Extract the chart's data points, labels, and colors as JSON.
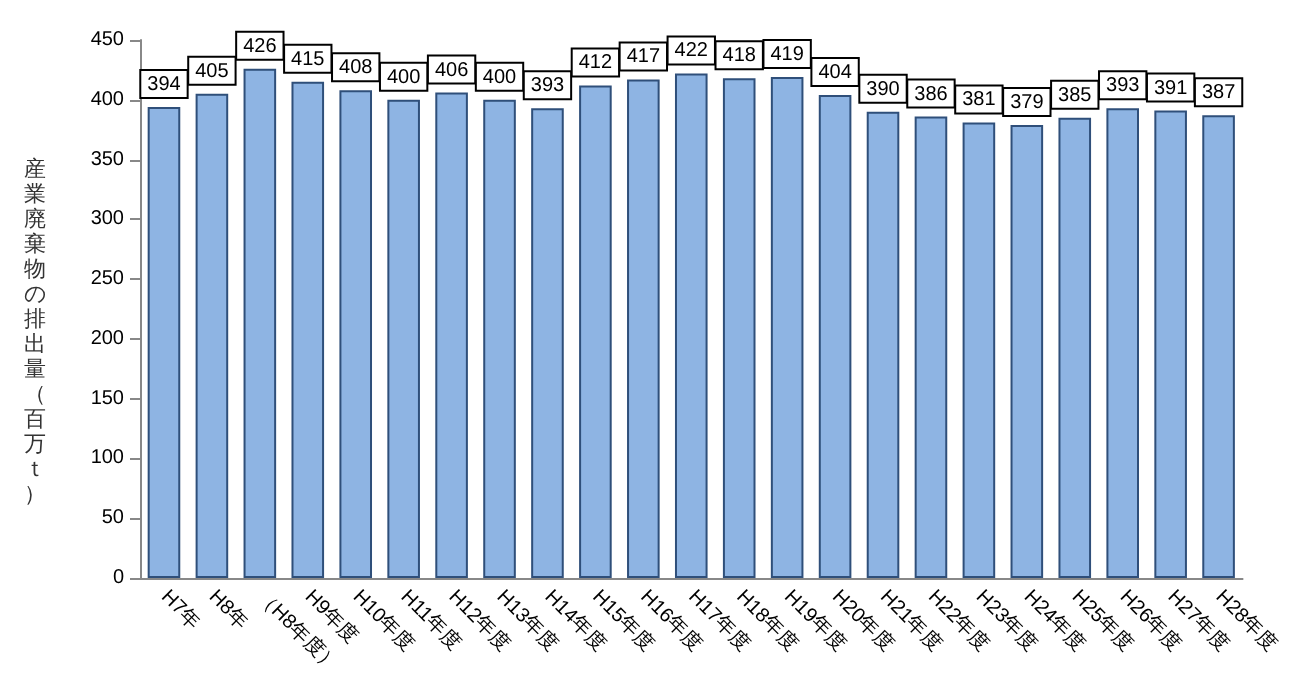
{
  "chart_data": {
    "type": "bar",
    "ylabel": "産業廃棄物の排出量（百万ｔ）",
    "categories": [
      "H7年",
      "H8年",
      "（H8年度）",
      "H9年度",
      "H10年度",
      "H11年度",
      "H12年度",
      "H13年度",
      "H14年度",
      "H15年度",
      "H16年度",
      "H17年度",
      "H18年度",
      "H19年度",
      "H20年度",
      "H21年度",
      "H22年度",
      "H23年度",
      "H24年度",
      "H25年度",
      "H26年度",
      "H27年度",
      "H28年度"
    ],
    "values": [
      394,
      405,
      426,
      415,
      408,
      400,
      406,
      400,
      393,
      412,
      417,
      422,
      418,
      419,
      404,
      390,
      386,
      381,
      379,
      385,
      393,
      391,
      387
    ],
    "color": "#8eb4e3",
    "ylim": [
      0,
      450
    ],
    "yticks": [
      0,
      50,
      100,
      150,
      200,
      250,
      300,
      350,
      400,
      450
    ],
    "grid": false,
    "data_labels": true
  }
}
